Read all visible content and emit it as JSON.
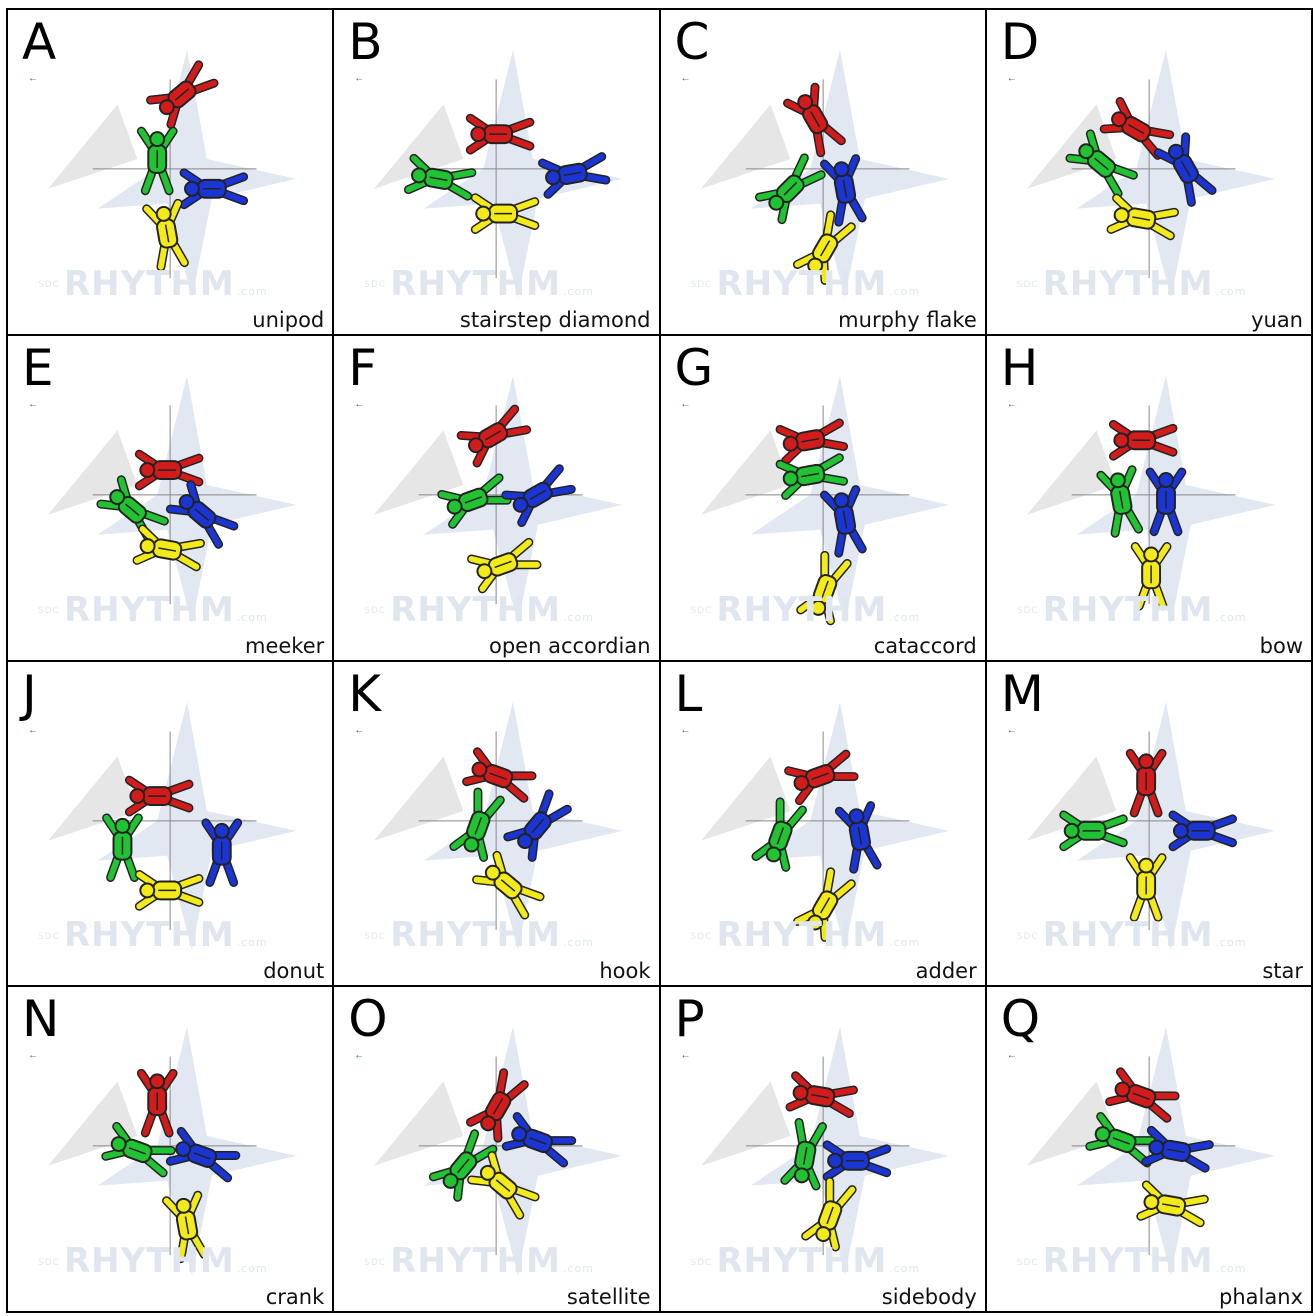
{
  "watermark": {
    "brand": "RHYTHM",
    "suffix": ".com",
    "prefix": "SDC"
  },
  "marker_glyph": "←",
  "colors": {
    "red": "#d21c1c",
    "green": "#22c332",
    "blue": "#1a35d4",
    "yellow": "#f3ea1a",
    "star": "#a9b9d4",
    "arrow": "#dedede"
  },
  "formations": [
    {
      "letter": "A",
      "name": "unipod"
    },
    {
      "letter": "B",
      "name": "stairstep diamond"
    },
    {
      "letter": "C",
      "name": "murphy flake"
    },
    {
      "letter": "D",
      "name": "yuan"
    },
    {
      "letter": "E",
      "name": "meeker"
    },
    {
      "letter": "F",
      "name": "open accordian"
    },
    {
      "letter": "G",
      "name": "cataccord"
    },
    {
      "letter": "H",
      "name": "bow"
    },
    {
      "letter": "J",
      "name": "donut"
    },
    {
      "letter": "K",
      "name": "hook"
    },
    {
      "letter": "L",
      "name": "adder"
    },
    {
      "letter": "M",
      "name": "star"
    },
    {
      "letter": "N",
      "name": "crank"
    },
    {
      "letter": "O",
      "name": "satellite"
    },
    {
      "letter": "P",
      "name": "sidebody"
    },
    {
      "letter": "Q",
      "name": "phalanx"
    }
  ]
}
